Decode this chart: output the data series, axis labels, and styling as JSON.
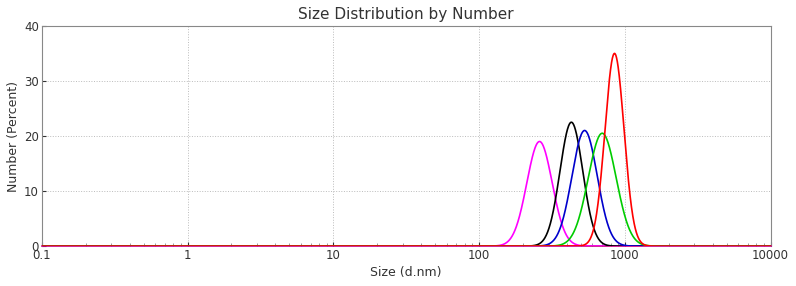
{
  "title": "Size Distribution by Number",
  "xlabel": "Size (d.nm)",
  "ylabel": "Number (Percent)",
  "xlim": [
    0.1,
    10000
  ],
  "ylim": [
    0,
    40
  ],
  "yticks": [
    0,
    10,
    20,
    30,
    40
  ],
  "background_color": "#ffffff",
  "curves": [
    {
      "color": "#ff00ff",
      "peak": 260,
      "height": 19.0,
      "sigma_log": 0.2
    },
    {
      "color": "#000000",
      "peak": 430,
      "height": 22.5,
      "sigma_log": 0.18
    },
    {
      "color": "#0000cc",
      "peak": 530,
      "height": 21.0,
      "sigma_log": 0.2
    },
    {
      "color": "#00cc00",
      "peak": 700,
      "height": 20.5,
      "sigma_log": 0.22
    },
    {
      "color": "#ff0000",
      "peak": 850,
      "height": 35.0,
      "sigma_log": 0.15
    }
  ],
  "figsize": [
    7.96,
    2.86
  ],
  "dpi": 100,
  "title_fontsize": 11,
  "axis_label_fontsize": 9,
  "tick_fontsize": 8.5,
  "grid_color": "#bbbbbb",
  "axis_bg": "#ffffff",
  "bottom_spine_color": "#cc0088",
  "other_spine_color": "#888888"
}
